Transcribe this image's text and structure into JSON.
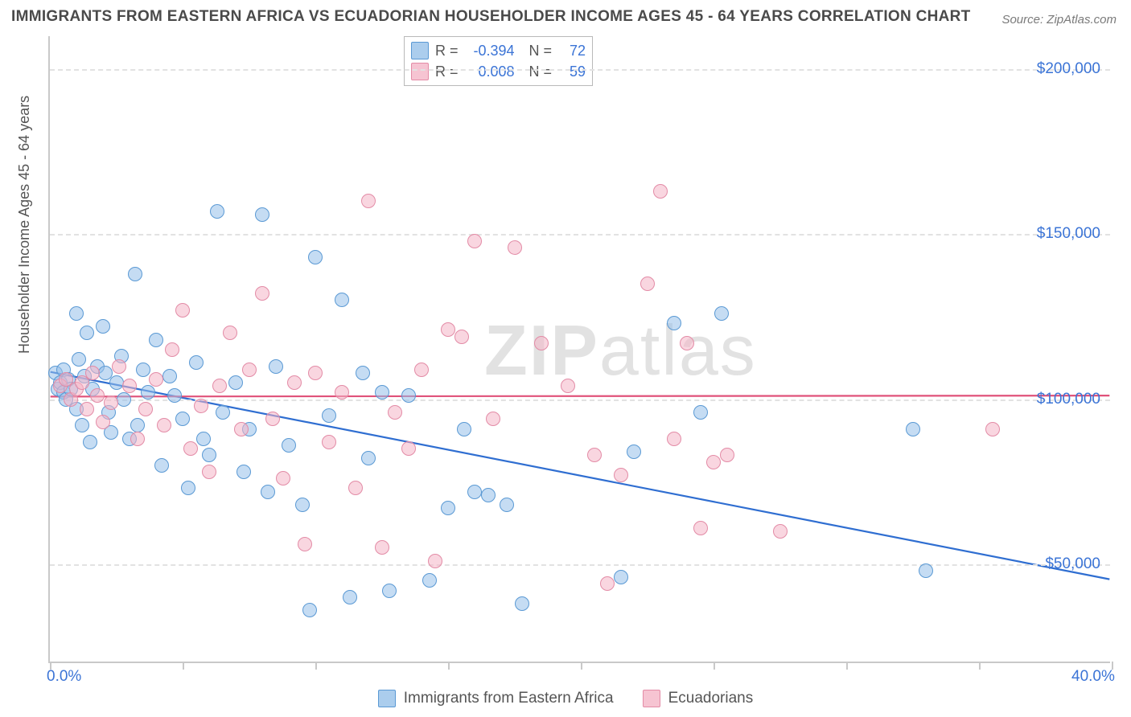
{
  "title": "IMMIGRANTS FROM EASTERN AFRICA VS ECUADORIAN HOUSEHOLDER INCOME AGES 45 - 64 YEARS CORRELATION CHART",
  "source": "Source: ZipAtlas.com",
  "ylabel": "Householder Income Ages 45 - 64 years",
  "watermark_bold": "ZIP",
  "watermark_light": "atlas",
  "chart": {
    "type": "scatter",
    "xlim": [
      0,
      40
    ],
    "ylim": [
      20000,
      210000
    ],
    "x_ticks": [
      0,
      5,
      10,
      15,
      20,
      25,
      30,
      35,
      40
    ],
    "x_tick_labels": {
      "0": "0.0%",
      "40": "40.0%"
    },
    "y_gridlines": [
      50000,
      100000,
      150000,
      200000
    ],
    "y_tick_labels": {
      "50000": "$50,000",
      "100000": "$100,000",
      "150000": "$150,000",
      "200000": "$200,000"
    },
    "background_color": "#ffffff",
    "grid_color": "#e2e2e2",
    "axis_color": "#c9c9c9",
    "tick_label_color": "#3b74d6",
    "point_radius": 9,
    "series": [
      {
        "name": "Immigrants from Eastern Africa",
        "color_fill": "rgba(150,192,233,0.55)",
        "color_stroke": "#5a99d4",
        "trend_color": "#2f6ed1",
        "trend_width": 2.2,
        "R": "-0.394",
        "N": "72",
        "trend": {
          "x1": 0,
          "y1": 108000,
          "x2": 40,
          "y2": 45000
        },
        "points": [
          [
            0.2,
            108000
          ],
          [
            0.3,
            103000
          ],
          [
            0.4,
            105000
          ],
          [
            0.5,
            109000
          ],
          [
            0.5,
            102000
          ],
          [
            0.6,
            100000
          ],
          [
            0.7,
            106000
          ],
          [
            0.8,
            103000
          ],
          [
            1.0,
            126000
          ],
          [
            1.0,
            97000
          ],
          [
            1.1,
            112000
          ],
          [
            1.2,
            92000
          ],
          [
            1.3,
            107000
          ],
          [
            1.4,
            120000
          ],
          [
            1.5,
            87000
          ],
          [
            1.6,
            103000
          ],
          [
            1.8,
            110000
          ],
          [
            2.0,
            122000
          ],
          [
            2.1,
            108000
          ],
          [
            2.2,
            96000
          ],
          [
            2.3,
            90000
          ],
          [
            2.5,
            105000
          ],
          [
            2.7,
            113000
          ],
          [
            2.8,
            100000
          ],
          [
            3.0,
            88000
          ],
          [
            3.2,
            138000
          ],
          [
            3.3,
            92000
          ],
          [
            3.5,
            109000
          ],
          [
            3.7,
            102000
          ],
          [
            4.0,
            118000
          ],
          [
            4.2,
            80000
          ],
          [
            4.5,
            107000
          ],
          [
            4.7,
            101000
          ],
          [
            5.0,
            94000
          ],
          [
            5.2,
            73000
          ],
          [
            5.5,
            111000
          ],
          [
            5.8,
            88000
          ],
          [
            6.0,
            83000
          ],
          [
            6.3,
            157000
          ],
          [
            6.5,
            96000
          ],
          [
            7.0,
            105000
          ],
          [
            7.3,
            78000
          ],
          [
            7.5,
            91000
          ],
          [
            8.0,
            156000
          ],
          [
            8.2,
            72000
          ],
          [
            8.5,
            110000
          ],
          [
            9.0,
            86000
          ],
          [
            9.5,
            68000
          ],
          [
            9.8,
            36000
          ],
          [
            10.0,
            143000
          ],
          [
            10.5,
            95000
          ],
          [
            11.0,
            130000
          ],
          [
            11.3,
            40000
          ],
          [
            11.8,
            108000
          ],
          [
            12.0,
            82000
          ],
          [
            12.5,
            102000
          ],
          [
            12.8,
            42000
          ],
          [
            13.5,
            101000
          ],
          [
            14.3,
            45000
          ],
          [
            15.0,
            67000
          ],
          [
            15.6,
            91000
          ],
          [
            16.0,
            72000
          ],
          [
            16.5,
            71000
          ],
          [
            17.2,
            68000
          ],
          [
            17.8,
            38000
          ],
          [
            21.5,
            46000
          ],
          [
            22.0,
            84000
          ],
          [
            23.5,
            123000
          ],
          [
            24.5,
            96000
          ],
          [
            25.3,
            126000
          ],
          [
            32.5,
            91000
          ],
          [
            33.0,
            48000
          ]
        ]
      },
      {
        "name": "Ecuadorians",
        "color_fill": "rgba(244,181,199,0.55)",
        "color_stroke": "#e38ba6",
        "trend_color": "#e0527a",
        "trend_width": 2.2,
        "R": "0.008",
        "N": "59",
        "trend": {
          "x1": 0,
          "y1": 100500,
          "x2": 40,
          "y2": 100800
        },
        "points": [
          [
            0.4,
            104000
          ],
          [
            0.6,
            106000
          ],
          [
            0.8,
            100000
          ],
          [
            1.0,
            103000
          ],
          [
            1.2,
            105000
          ],
          [
            1.4,
            97000
          ],
          [
            1.6,
            108000
          ],
          [
            1.8,
            101000
          ],
          [
            2.0,
            93000
          ],
          [
            2.3,
            99000
          ],
          [
            2.6,
            110000
          ],
          [
            3.0,
            104000
          ],
          [
            3.3,
            88000
          ],
          [
            3.6,
            97000
          ],
          [
            4.0,
            106000
          ],
          [
            4.3,
            92000
          ],
          [
            4.6,
            115000
          ],
          [
            5.0,
            127000
          ],
          [
            5.3,
            85000
          ],
          [
            5.7,
            98000
          ],
          [
            6.0,
            78000
          ],
          [
            6.4,
            104000
          ],
          [
            6.8,
            120000
          ],
          [
            7.2,
            91000
          ],
          [
            7.5,
            109000
          ],
          [
            8.0,
            132000
          ],
          [
            8.4,
            94000
          ],
          [
            8.8,
            76000
          ],
          [
            9.2,
            105000
          ],
          [
            9.6,
            56000
          ],
          [
            10.0,
            108000
          ],
          [
            10.5,
            87000
          ],
          [
            11.0,
            102000
          ],
          [
            11.5,
            73000
          ],
          [
            12.0,
            160000
          ],
          [
            12.5,
            55000
          ],
          [
            13.0,
            96000
          ],
          [
            13.5,
            85000
          ],
          [
            14.0,
            109000
          ],
          [
            14.5,
            51000
          ],
          [
            15.0,
            121000
          ],
          [
            15.5,
            119000
          ],
          [
            16.0,
            148000
          ],
          [
            16.7,
            94000
          ],
          [
            17.5,
            146000
          ],
          [
            18.5,
            117000
          ],
          [
            19.5,
            104000
          ],
          [
            20.5,
            83000
          ],
          [
            21.0,
            44000
          ],
          [
            21.5,
            77000
          ],
          [
            22.5,
            135000
          ],
          [
            23.0,
            163000
          ],
          [
            23.5,
            88000
          ],
          [
            24.0,
            117000
          ],
          [
            24.5,
            61000
          ],
          [
            25.0,
            81000
          ],
          [
            25.5,
            83000
          ],
          [
            27.5,
            60000
          ],
          [
            35.5,
            91000
          ]
        ]
      }
    ]
  },
  "legend_bottom": [
    {
      "swatch": "b",
      "label": "Immigrants from Eastern Africa"
    },
    {
      "swatch": "p",
      "label": "Ecuadorians"
    }
  ]
}
